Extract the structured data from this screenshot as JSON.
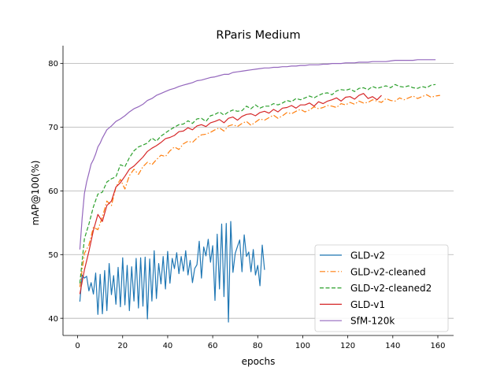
{
  "chart_data": {
    "type": "line",
    "title": "RParis Medium",
    "xlabel": "epochs",
    "ylabel": "mAP@100(%)",
    "xlim": [
      -6.5,
      167
    ],
    "ylim": [
      37.3,
      82.8
    ],
    "xticks": [
      0,
      20,
      40,
      60,
      80,
      100,
      120,
      140,
      160
    ],
    "yticks": [
      40,
      50,
      60,
      70,
      80
    ],
    "grid": "horizontal",
    "legend_position": "lower right",
    "series": [
      {
        "name": "GLD-v2",
        "color": "#1f77b4",
        "style": "solid",
        "x": [
          1,
          2,
          3,
          4,
          5,
          6,
          7,
          8,
          9,
          10,
          11,
          12,
          13,
          14,
          15,
          16,
          17,
          18,
          19,
          20,
          21,
          22,
          23,
          24,
          25,
          26,
          27,
          28,
          29,
          30,
          31,
          32,
          33,
          34,
          35,
          36,
          37,
          38,
          39,
          40,
          41,
          42,
          43,
          44,
          45,
          46,
          47,
          48,
          49,
          50,
          51,
          52,
          53,
          54,
          55,
          56,
          57,
          58,
          59,
          60,
          61,
          62,
          63,
          64,
          65,
          66,
          67,
          68,
          69,
          70,
          71,
          72,
          73,
          74,
          75,
          76,
          77,
          78,
          79,
          80,
          81,
          82,
          83
        ],
        "values": [
          42.6,
          46.8,
          46.3,
          46.6,
          44.3,
          45.6,
          43.8,
          47.1,
          40.6,
          46.9,
          40.7,
          47.5,
          41.2,
          48.6,
          43.7,
          46.7,
          42.2,
          48.0,
          41.8,
          49.5,
          42.1,
          48.3,
          41.2,
          48.1,
          42.7,
          49.4,
          41.6,
          49.5,
          41.9,
          49.6,
          39.9,
          49.3,
          42.7,
          50.6,
          43.1,
          48.6,
          45.4,
          49.7,
          44.6,
          50.5,
          45.5,
          49.4,
          47.8,
          50.3,
          47.0,
          49.7,
          47.4,
          50.6,
          46.8,
          49.1,
          45.6,
          47.8,
          48.4,
          52.1,
          46.3,
          51.2,
          49.8,
          52.4,
          48.8,
          51.4,
          42.8,
          53.2,
          44.6,
          54.8,
          43.4,
          54.9,
          39.4,
          55.2,
          47.2,
          50.2,
          51.3,
          52.3,
          47.3,
          53.1,
          49.7,
          50.4,
          47.3,
          50.8,
          46.8,
          48.3,
          45.1,
          51.5,
          47.6
        ]
      },
      {
        "name": "GLD-v2-cleaned",
        "color": "#ff7f0e",
        "style": "dashdot",
        "x": [
          1,
          3,
          5,
          7,
          9,
          11,
          13,
          15,
          17,
          19,
          21,
          23,
          25,
          27,
          29,
          31,
          33,
          35,
          37,
          39,
          41,
          43,
          45,
          47,
          49,
          51,
          53,
          55,
          57,
          59,
          61,
          63,
          65,
          67,
          69,
          71,
          73,
          75,
          77,
          79,
          81,
          83,
          85,
          87,
          89,
          91,
          93,
          95,
          97,
          99,
          101,
          103,
          105,
          107,
          109,
          111,
          113,
          115,
          117,
          119,
          121,
          123,
          125,
          127,
          129,
          131,
          133,
          135,
          137,
          139,
          141,
          143,
          145,
          147,
          149,
          151,
          153,
          155,
          157,
          159,
          161
        ],
        "values": [
          44.9,
          50.2,
          51.5,
          54.3,
          53.9,
          55.9,
          58.4,
          57.7,
          60.6,
          61.8,
          60.3,
          62.4,
          63.4,
          62.6,
          63.8,
          64.5,
          64.1,
          64.9,
          65.6,
          65.4,
          66.3,
          66.9,
          66.5,
          67.4,
          67.8,
          67.6,
          68.3,
          68.8,
          68.9,
          69.2,
          69.6,
          69.9,
          69.4,
          70.2,
          70.4,
          70.1,
          70.6,
          70.9,
          70.3,
          70.8,
          71.3,
          71.1,
          71.5,
          71.9,
          71.4,
          71.8,
          72.3,
          72.1,
          72.5,
          72.8,
          72.4,
          72.7,
          73.2,
          72.9,
          73.1,
          73.4,
          73.3,
          73.1,
          73.7,
          73.5,
          73.9,
          73.6,
          74.1,
          73.8,
          73.9,
          74.3,
          74.1,
          73.9,
          74.5,
          74.2,
          74.1,
          74.6,
          74.3,
          74.6,
          74.9,
          74.5,
          74.8,
          75.1,
          74.7,
          74.9,
          75.0
        ]
      },
      {
        "name": "GLD-v2-cleaned2",
        "color": "#2ca02c",
        "style": "dashed",
        "x": [
          1,
          3,
          5,
          7,
          9,
          11,
          13,
          15,
          17,
          19,
          21,
          23,
          25,
          27,
          29,
          31,
          33,
          35,
          37,
          39,
          41,
          43,
          45,
          47,
          49,
          51,
          53,
          55,
          57,
          59,
          61,
          63,
          65,
          67,
          69,
          71,
          73,
          75,
          77,
          79,
          81,
          83,
          85,
          87,
          89,
          91,
          93,
          95,
          97,
          99,
          101,
          103,
          105,
          107,
          109,
          111,
          113,
          115,
          117,
          119,
          121,
          123,
          125,
          127,
          129,
          131,
          133,
          135,
          137,
          139,
          141,
          143,
          145,
          147,
          149,
          151,
          153,
          155,
          157,
          159
        ],
        "values": [
          45.5,
          52.5,
          54.8,
          57.5,
          59.5,
          59.8,
          61.4,
          61.9,
          62.2,
          64.1,
          63.8,
          65.2,
          66.3,
          66.9,
          67.2,
          67.5,
          68.3,
          67.8,
          68.6,
          69.1,
          69.6,
          70.0,
          70.4,
          70.5,
          71.0,
          70.6,
          71.3,
          71.4,
          70.9,
          71.8,
          72.0,
          72.4,
          71.9,
          72.4,
          72.7,
          72.5,
          72.6,
          73.3,
          72.9,
          73.5,
          73.0,
          73.3,
          73.3,
          73.7,
          73.5,
          73.8,
          74.2,
          74.0,
          74.5,
          74.3,
          74.6,
          74.9,
          74.6,
          75.0,
          75.3,
          75.4,
          75.1,
          75.7,
          75.9,
          75.8,
          76.0,
          75.6,
          76.1,
          76.2,
          75.9,
          76.4,
          76.1,
          76.3,
          76.5,
          76.2,
          76.7,
          76.4,
          76.3,
          76.5,
          76.2,
          76.1,
          76.4,
          76.2,
          76.6,
          76.7
        ]
      },
      {
        "name": "GLD-v1",
        "color": "#d62728",
        "style": "solid",
        "x": [
          1,
          3,
          5,
          7,
          9,
          11,
          13,
          15,
          17,
          19,
          21,
          23,
          25,
          27,
          29,
          31,
          33,
          35,
          37,
          39,
          41,
          43,
          45,
          47,
          49,
          51,
          53,
          55,
          57,
          59,
          61,
          63,
          65,
          67,
          69,
          71,
          73,
          75,
          77,
          79,
          81,
          83,
          85,
          87,
          89,
          91,
          93,
          95,
          97,
          99,
          101,
          103,
          105,
          107,
          109,
          111,
          113,
          115,
          117,
          119,
          121,
          123,
          125,
          127,
          129,
          131,
          133,
          135
        ],
        "values": [
          43.8,
          47.6,
          50.5,
          53.8,
          56.3,
          55.2,
          57.7,
          58.4,
          60.6,
          61.3,
          62.3,
          63.4,
          63.9,
          64.6,
          65.3,
          66.2,
          66.7,
          67.1,
          67.6,
          68.2,
          68.4,
          68.7,
          69.3,
          69.4,
          69.9,
          69.6,
          70.2,
          70.4,
          70.1,
          70.7,
          70.9,
          71.2,
          70.7,
          71.4,
          71.6,
          71.1,
          71.7,
          72.0,
          72.1,
          71.8,
          72.3,
          72.5,
          72.2,
          72.8,
          72.4,
          73.0,
          73.1,
          73.4,
          73.0,
          73.5,
          73.5,
          73.8,
          73.3,
          74.0,
          73.7,
          74.1,
          74.3,
          74.6,
          74.1,
          74.7,
          74.8,
          74.4,
          75.0,
          75.3,
          74.5,
          74.8,
          74.3,
          75.0
        ]
      },
      {
        "name": "SfM-120k",
        "color": "#9467bd",
        "style": "solid",
        "x": [
          1,
          2,
          3,
          4,
          5,
          6,
          7,
          8,
          9,
          10,
          11,
          13,
          15,
          17,
          19,
          21,
          23,
          25,
          27,
          29,
          31,
          33,
          35,
          37,
          39,
          41,
          43,
          45,
          47,
          49,
          51,
          53,
          55,
          57,
          59,
          61,
          63,
          65,
          67,
          69,
          71,
          73,
          75,
          77,
          79,
          81,
          83,
          85,
          87,
          89,
          91,
          93,
          95,
          97,
          99,
          101,
          103,
          105,
          107,
          109,
          111,
          113,
          115,
          117,
          119,
          121,
          123,
          125,
          127,
          129,
          131,
          133,
          135,
          137,
          139,
          141,
          143,
          145,
          147,
          149,
          151,
          153,
          155,
          157,
          159
        ],
        "values": [
          50.8,
          55.7,
          59.6,
          61.4,
          62.8,
          64.2,
          64.9,
          65.8,
          66.9,
          67.5,
          68.3,
          69.6,
          70.2,
          70.9,
          71.3,
          71.8,
          72.4,
          72.9,
          73.2,
          73.6,
          74.2,
          74.5,
          75.0,
          75.3,
          75.6,
          75.9,
          76.1,
          76.4,
          76.6,
          76.8,
          77.0,
          77.3,
          77.4,
          77.6,
          77.8,
          77.9,
          78.1,
          78.3,
          78.3,
          78.6,
          78.7,
          78.8,
          78.9,
          79.0,
          79.1,
          79.2,
          79.3,
          79.3,
          79.4,
          79.4,
          79.5,
          79.5,
          79.6,
          79.6,
          79.7,
          79.7,
          79.8,
          79.8,
          79.8,
          79.9,
          79.9,
          80.0,
          80.0,
          80.0,
          80.1,
          80.1,
          80.1,
          80.2,
          80.2,
          80.2,
          80.3,
          80.3,
          80.3,
          80.3,
          80.4,
          80.5,
          80.5,
          80.5,
          80.5,
          80.5,
          80.6,
          80.6,
          80.6,
          80.6,
          80.6
        ]
      }
    ]
  }
}
